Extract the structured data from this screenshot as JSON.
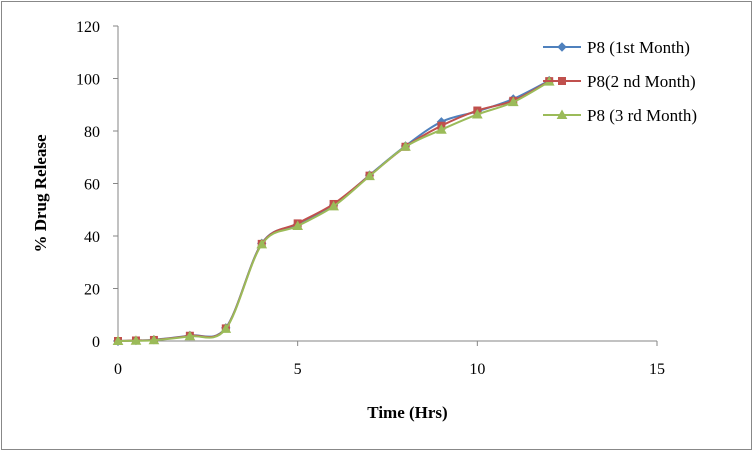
{
  "chart_data": {
    "type": "line",
    "xlabel": "Time (Hrs)",
    "ylabel": "% Drug Release",
    "xlim": [
      0,
      15
    ],
    "ylim": [
      0,
      120
    ],
    "xticks": [
      0,
      5,
      10,
      15
    ],
    "yticks": [
      0,
      20,
      40,
      60,
      80,
      100,
      120
    ],
    "grid": false,
    "legend_position": "top-right",
    "x": [
      0,
      0.5,
      1,
      2,
      3,
      4,
      5,
      6,
      7,
      8,
      9,
      10,
      11,
      12
    ],
    "series": [
      {
        "name": "P8 (1st Month)",
        "color": "#4F81BD",
        "marker": "diamond",
        "values": [
          0,
          0.2,
          0.5,
          2.1,
          5.0,
          37.2,
          44.5,
          51.8,
          63.2,
          74.3,
          83.5,
          87.5,
          92.2,
          99.2
        ]
      },
      {
        "name": "P8(2 nd Month)",
        "color": "#C0504D",
        "marker": "square",
        "values": [
          0,
          0.2,
          0.4,
          2.0,
          4.8,
          37.0,
          44.8,
          52.2,
          63.0,
          74.0,
          82.0,
          87.8,
          91.5,
          99.0
        ]
      },
      {
        "name": "P8 (3 rd Month)",
        "color": "#9BBB59",
        "marker": "triangle",
        "values": [
          0,
          0.1,
          0.3,
          1.8,
          4.6,
          36.8,
          43.8,
          51.3,
          62.8,
          74.0,
          80.5,
          86.3,
          91.0,
          98.8
        ]
      }
    ]
  }
}
